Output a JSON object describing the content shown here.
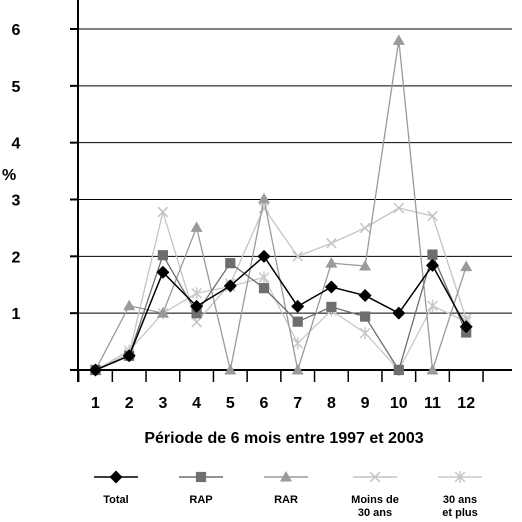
{
  "chart_data": {
    "type": "line",
    "title": "",
    "xlabel": "Période de 6 mois entre 1997 et 2003",
    "ylabel": "%",
    "x": [
      1,
      2,
      3,
      4,
      5,
      6,
      7,
      8,
      9,
      10,
      11,
      12
    ],
    "xlim": [
      0,
      13
    ],
    "ylim": [
      0,
      6
    ],
    "yticks": [
      1,
      2,
      3,
      4,
      5,
      6
    ],
    "grid": true,
    "legend_position": "bottom",
    "series": [
      {
        "name": "Total",
        "marker": "diamond",
        "color": "#000000",
        "values": [
          0,
          0.25,
          1.72,
          1.12,
          1.48,
          2.0,
          1.12,
          1.46,
          1.31,
          1.0,
          1.84,
          0.76
        ]
      },
      {
        "name": "RAP",
        "marker": "square",
        "color": "#6e6e6e",
        "values": [
          0,
          0.25,
          2.02,
          1.0,
          1.88,
          1.44,
          0.85,
          1.11,
          0.94,
          0,
          2.03,
          0.66
        ]
      },
      {
        "name": "RAR",
        "marker": "triangle",
        "color": "#9a9a9a",
        "values": [
          0,
          1.13,
          1.0,
          2.51,
          0,
          3.01,
          0,
          1.88,
          1.83,
          5.8,
          0,
          1.82
        ]
      },
      {
        "name": "Moins de 30 ans",
        "marker": "x",
        "color": "#c4c4c4",
        "values": [
          0,
          0.29,
          2.78,
          0.84,
          1.52,
          2.85,
          2.0,
          2.23,
          2.5,
          2.85,
          2.71,
          0.9
        ]
      },
      {
        "name": "30 ans et plus",
        "marker": "asterisk",
        "color": "#c8c8c8",
        "values": [
          0,
          0.34,
          1.0,
          1.35,
          1.47,
          1.63,
          0.47,
          1.05,
          0.65,
          0,
          1.13,
          0.85
        ]
      }
    ]
  }
}
